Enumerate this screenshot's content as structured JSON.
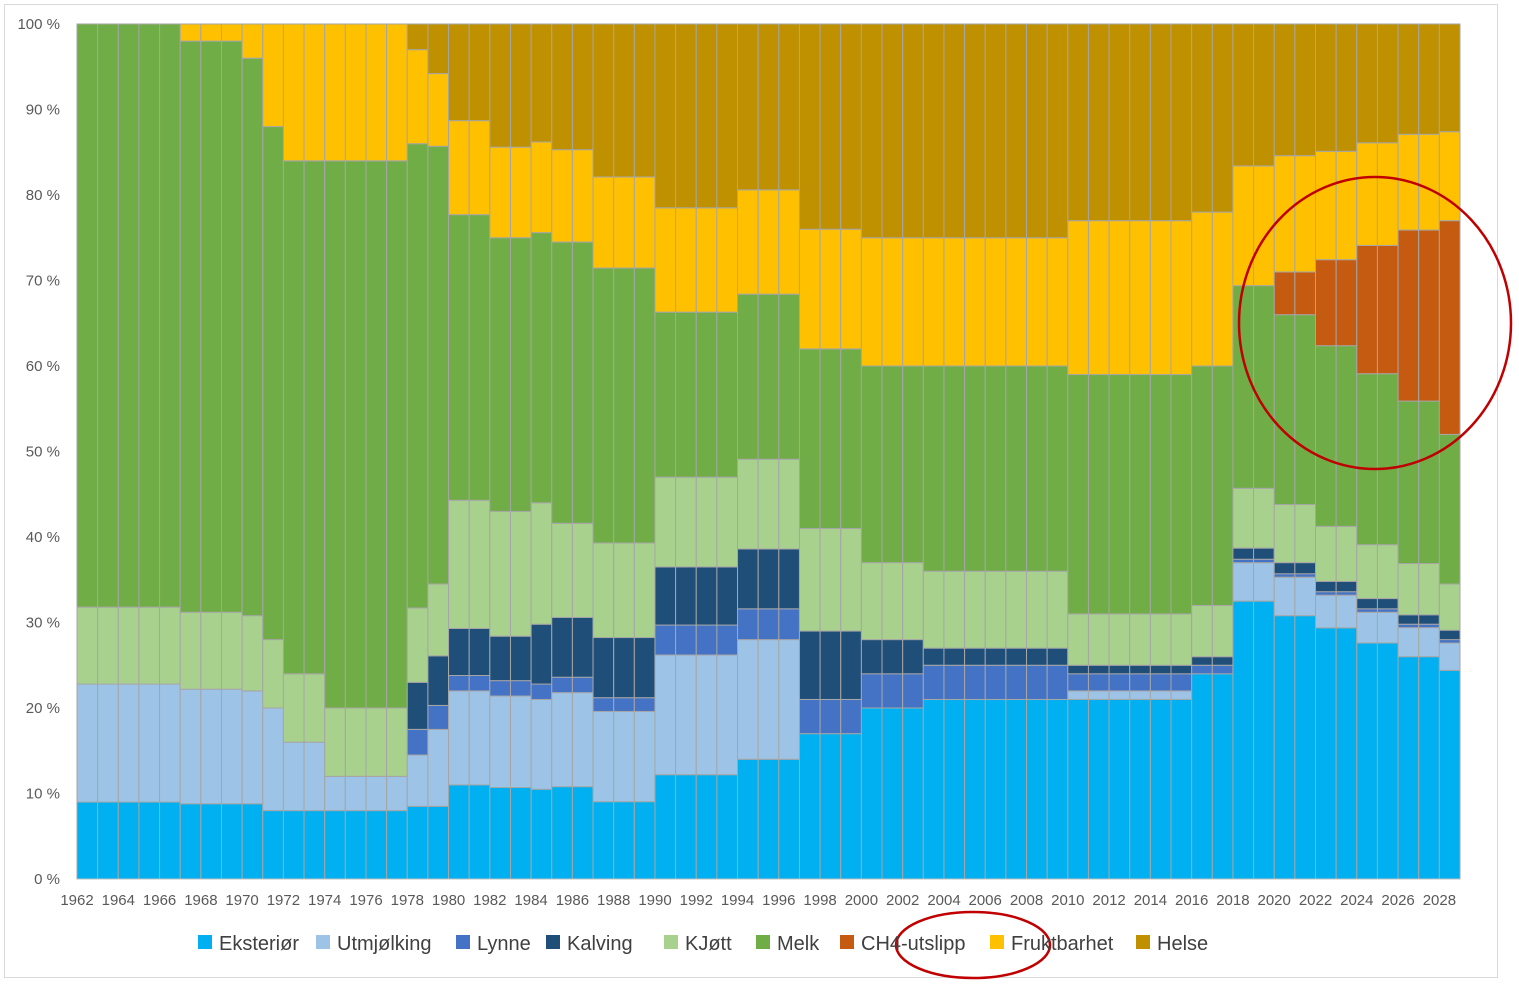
{
  "chart_data": {
    "type": "bar",
    "stacked": true,
    "percent_stacked": true,
    "title": "",
    "xlabel": "",
    "ylabel": "",
    "ylim": [
      0,
      100
    ],
    "yticks": [
      "0 %",
      "10 %",
      "20 %",
      "30 %",
      "40 %",
      "50 %",
      "60 %",
      "70 %",
      "80 %",
      "90 %",
      "100 %"
    ],
    "grid": false,
    "legend_position": "bottom",
    "categories": [
      "1962",
      "1963",
      "1964",
      "1965",
      "1966",
      "1967",
      "1968",
      "1969",
      "1970",
      "1971",
      "1972",
      "1973",
      "1974",
      "1975",
      "1976",
      "1977",
      "1978",
      "1979",
      "1980",
      "1981",
      "1982",
      "1983",
      "1984",
      "1985",
      "1986",
      "1987",
      "1988",
      "1989",
      "1990",
      "1991",
      "1992",
      "1993",
      "1994",
      "1995",
      "1996",
      "1997",
      "1998",
      "1999",
      "2000",
      "2001",
      "2002",
      "2003",
      "2004",
      "2005",
      "2006",
      "2007",
      "2008",
      "2009",
      "2010",
      "2011",
      "2012",
      "2013",
      "2014",
      "2015",
      "2016",
      "2017",
      "2018",
      "2019",
      "2020",
      "2021",
      "2022",
      "2023",
      "2024",
      "2025",
      "2026",
      "2027",
      "2028"
    ],
    "x_tick_labels": [
      "1962",
      "1964",
      "1966",
      "1968",
      "1970",
      "1972",
      "1974",
      "1976",
      "1978",
      "1980",
      "1982",
      "1984",
      "1986",
      "1988",
      "1990",
      "1992",
      "1994",
      "1996",
      "1998",
      "2000",
      "2002",
      "2004",
      "2006",
      "2008",
      "2010",
      "2012",
      "2014",
      "2016",
      "2018",
      "2020",
      "2022",
      "2024",
      "2026",
      "2028"
    ],
    "series": [
      {
        "name": "Eksteriør",
        "color": "#00b0f0",
        "values": [
          9,
          9,
          9,
          9,
          9,
          8.8,
          8.8,
          8.8,
          8.8,
          8,
          8,
          8,
          8,
          8,
          8,
          8,
          8.5,
          8.5,
          11,
          11,
          10.7,
          10.7,
          10.5,
          10.8,
          10.8,
          9,
          9,
          9,
          12.2,
          12.2,
          12.2,
          12.2,
          14,
          14,
          14,
          17,
          17,
          17,
          20,
          20,
          20,
          21,
          21,
          21,
          21,
          21,
          21,
          21,
          21,
          21,
          21,
          21,
          21,
          21,
          24,
          24,
          32.5,
          32.5,
          30.8,
          30.8,
          29.2,
          29.2,
          27.6,
          27.6,
          26,
          26,
          24.4
        ]
      },
      {
        "name": "Utmjølking",
        "color": "#9dc3e6",
        "values": [
          13.8,
          13.8,
          13.8,
          13.8,
          13.8,
          13.4,
          13.4,
          13.4,
          13.2,
          12,
          8,
          8,
          4,
          4,
          4,
          4,
          6,
          9,
          11,
          11,
          10.7,
          10.7,
          10.5,
          11,
          11,
          10.5,
          10.5,
          10.5,
          14,
          14,
          14,
          14,
          14,
          14,
          14,
          0,
          0,
          0,
          0,
          0,
          0,
          0,
          0,
          0,
          0,
          0,
          0,
          0,
          1,
          1,
          1,
          1,
          1,
          1,
          0,
          0,
          4.5,
          4.5,
          4.5,
          4.5,
          3.8,
          3.8,
          3.6,
          3.6,
          3.4,
          3.4,
          3.2
        ]
      },
      {
        "name": "Lynne",
        "color": "#4472c4",
        "values": [
          0,
          0,
          0,
          0,
          0,
          0,
          0,
          0,
          0,
          0,
          0,
          0,
          0,
          0,
          0,
          0,
          3,
          2.8,
          1.8,
          1.8,
          1.8,
          1.8,
          1.8,
          1.8,
          1.8,
          1.6,
          1.6,
          1.6,
          3.5,
          3.5,
          3.5,
          3.5,
          3.6,
          3.6,
          3.6,
          4,
          4,
          4,
          4,
          4,
          4,
          4,
          4,
          4,
          4,
          4,
          4,
          4,
          2,
          2,
          2,
          2,
          2,
          2,
          1,
          1,
          0.4,
          0.4,
          0.4,
          0.4,
          0.4,
          0.4,
          0.4,
          0.4,
          0.4,
          0.4,
          0.4
        ]
      },
      {
        "name": "Kalving",
        "color": "#1f4e79",
        "values": [
          0,
          0,
          0,
          0,
          0,
          0,
          0,
          0,
          0,
          0,
          0,
          0,
          0,
          0,
          0,
          0,
          5.5,
          5.8,
          5.5,
          5.5,
          5.2,
          5.2,
          7,
          7,
          7,
          7,
          7,
          7,
          6.8,
          6.8,
          6.8,
          6.8,
          7,
          7,
          7,
          8,
          8,
          8,
          4,
          4,
          4,
          2,
          2,
          2,
          2,
          2,
          2,
          2,
          1,
          1,
          1,
          1,
          1,
          1,
          1,
          1,
          1.3,
          1.3,
          1.3,
          1.3,
          1.2,
          1.2,
          1.2,
          1.2,
          1.1,
          1.1,
          1.1
        ]
      },
      {
        "name": "KJøtt",
        "color": "#a9d18e",
        "values": [
          9,
          9,
          9,
          9,
          9,
          9,
          9,
          9,
          8.8,
          8,
          8,
          8,
          8,
          8,
          8,
          8,
          8.7,
          8.4,
          15,
          15,
          14.6,
          14.6,
          14.2,
          11,
          11,
          11,
          11,
          11,
          10.5,
          10.5,
          10.5,
          10.5,
          10.5,
          10.5,
          10.5,
          12,
          12,
          12,
          9,
          9,
          9,
          9,
          9,
          9,
          9,
          9,
          9,
          9,
          6,
          6,
          6,
          6,
          6,
          6,
          6,
          6,
          7,
          7,
          6.8,
          6.8,
          6.4,
          6.4,
          6.3,
          6.3,
          6,
          6,
          5.4
        ]
      },
      {
        "name": "Melk",
        "color": "#70ad47",
        "values": [
          68.2,
          68.2,
          68.2,
          68.2,
          68.2,
          66.8,
          66.8,
          66.8,
          65.2,
          60,
          60,
          60,
          64,
          64,
          64,
          64,
          54.3,
          51.2,
          33.4,
          33.4,
          32,
          32,
          31.6,
          32.9,
          32.9,
          32,
          32,
          32,
          19.3,
          19.3,
          19.3,
          19.3,
          19.3,
          19.3,
          19.3,
          21,
          21,
          21,
          23,
          23,
          23,
          24,
          24,
          24,
          24,
          24,
          24,
          24,
          28,
          28,
          28,
          28,
          28,
          28,
          28,
          28,
          23.7,
          23.7,
          22.2,
          22.2,
          21,
          21,
          20,
          20,
          19,
          19,
          17.5
        ]
      },
      {
        "name": "CH4-utslipp",
        "color": "#c55a11",
        "values": [
          0,
          0,
          0,
          0,
          0,
          0,
          0,
          0,
          0,
          0,
          0,
          0,
          0,
          0,
          0,
          0,
          0,
          0,
          0,
          0,
          0,
          0,
          0,
          0,
          0,
          0,
          0,
          0,
          0,
          0,
          0,
          0,
          0,
          0,
          0,
          0,
          0,
          0,
          0,
          0,
          0,
          0,
          0,
          0,
          0,
          0,
          0,
          0,
          0,
          0,
          0,
          0,
          0,
          0,
          0,
          0,
          0,
          0,
          5,
          5,
          10,
          10,
          15,
          15,
          20,
          20,
          25
        ]
      },
      {
        "name": "Fruktbarhet",
        "color": "#ffc000",
        "values": [
          0,
          0,
          0,
          0,
          0,
          2,
          2,
          2,
          4,
          12,
          16,
          16,
          16,
          16,
          16,
          16,
          11,
          8.5,
          11,
          11,
          10.6,
          10.6,
          10.6,
          10.8,
          10.8,
          10.6,
          10.6,
          10.6,
          12.2,
          12.2,
          12.2,
          12.2,
          12.2,
          12.2,
          12.2,
          14,
          14,
          14,
          15,
          15,
          15,
          15,
          15,
          15,
          15,
          15,
          15,
          15,
          18,
          18,
          18,
          18,
          18,
          18,
          18,
          18,
          14,
          14,
          13.6,
          13.6,
          12.6,
          12.6,
          12,
          12,
          11.2,
          11.2,
          10.4
        ]
      },
      {
        "name": "Helse",
        "color": "#bf9000",
        "values": [
          0,
          0,
          0,
          0,
          0,
          0,
          0,
          0,
          0,
          0,
          0,
          0,
          0,
          0,
          0,
          0,
          3,
          5.8,
          11.3,
          11.3,
          14.4,
          14.4,
          13.8,
          14.7,
          14.7,
          17.8,
          17.8,
          17.8,
          21.5,
          21.5,
          21.5,
          21.5,
          19.4,
          19.4,
          19.4,
          24,
          24,
          24,
          25,
          25,
          25,
          25,
          25,
          25,
          25,
          25,
          25,
          25,
          23,
          23,
          23,
          23,
          23,
          23,
          22,
          22,
          16.6,
          16.6,
          15.4,
          15.4,
          14.8,
          14.8,
          13.9,
          13.9,
          12.9,
          12.9,
          12.6
        ]
      }
    ],
    "annotations": [
      {
        "type": "ellipse",
        "color": "#c00000",
        "target": "CH4-utslipp bars 2020-2028"
      },
      {
        "type": "ellipse",
        "color": "#c00000",
        "target": "CH4-utslipp legend entry"
      }
    ]
  }
}
